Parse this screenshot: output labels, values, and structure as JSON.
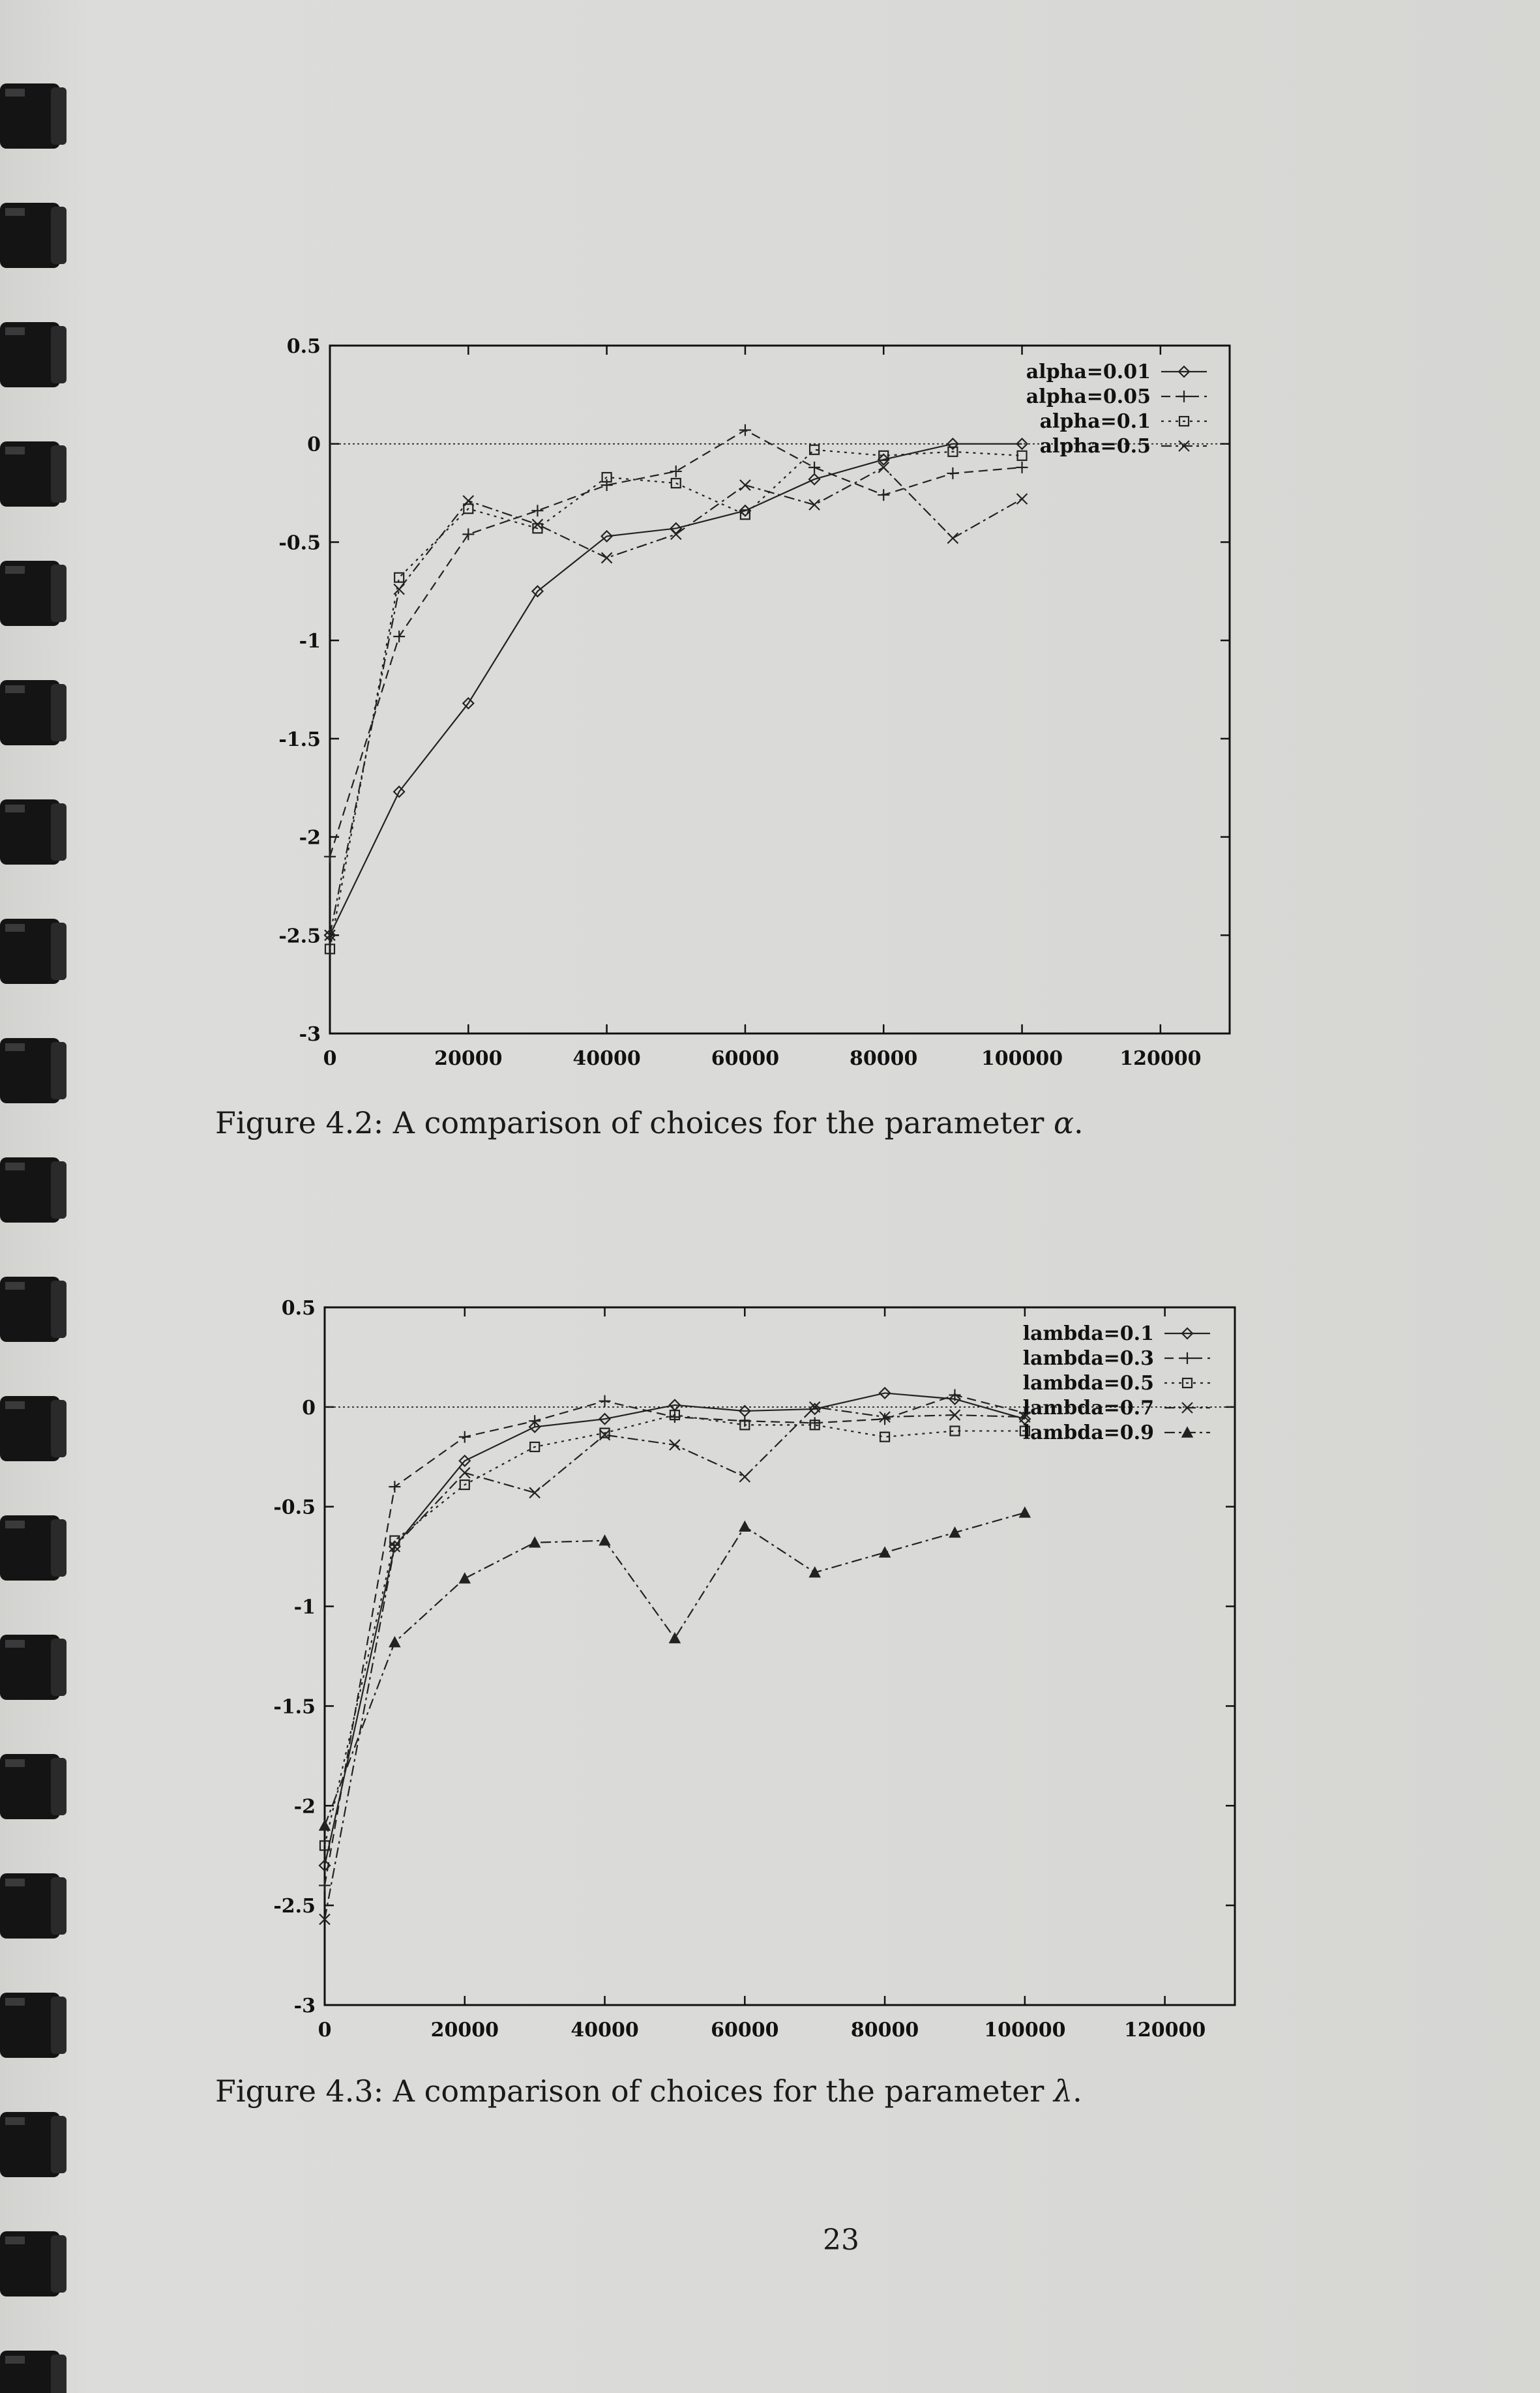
{
  "figures": [
    {
      "id": "fig42",
      "caption_main": "Figure 4.2: A comparison of choices for the parameter ",
      "caption_symbol": "α",
      "caption_end": ".",
      "chart_data": {
        "type": "line",
        "title": "",
        "xlabel": "",
        "ylabel": "",
        "xlim": [
          0,
          130000
        ],
        "ylim": [
          -3,
          0.5
        ],
        "xticks": [
          0,
          20000,
          40000,
          60000,
          80000,
          100000,
          120000
        ],
        "xtick_labels": [
          "0",
          "20000",
          "40000",
          "60000",
          "80000",
          "100000",
          "120000"
        ],
        "yticks": [
          0.5,
          0,
          -0.5,
          -1,
          -1.5,
          -2,
          -2.5,
          -3
        ],
        "ytick_labels": [
          "0.5",
          "0",
          "-0.5",
          "-1",
          "-1.5",
          "-2",
          "-2.5",
          "-3"
        ],
        "zero_line": true,
        "legend_position": "top-right",
        "x": [
          0,
          10000,
          20000,
          30000,
          40000,
          50000,
          60000,
          70000,
          80000,
          90000,
          100000
        ],
        "series": [
          {
            "name": "alpha=0.01",
            "marker": "diamond",
            "dash": "solid",
            "values": [
              -2.5,
              -1.77,
              -1.32,
              -0.75,
              -0.47,
              -0.43,
              -0.34,
              -0.18,
              -0.08,
              0.0,
              0.0
            ]
          },
          {
            "name": "alpha=0.05",
            "marker": "plus",
            "dash": "dashed",
            "values": [
              -2.1,
              -0.98,
              -0.46,
              -0.34,
              -0.21,
              -0.14,
              0.07,
              -0.12,
              -0.26,
              -0.15,
              -0.12
            ]
          },
          {
            "name": "alpha=0.1",
            "marker": "square",
            "dash": "dotted",
            "values": [
              -2.57,
              -0.68,
              -0.33,
              -0.43,
              -0.17,
              -0.2,
              -0.36,
              -0.03,
              -0.06,
              -0.04,
              -0.06
            ]
          },
          {
            "name": "alpha=0.5",
            "marker": "cross",
            "dash": "dashdot",
            "values": [
              -2.5,
              -0.74,
              -0.29,
              -0.41,
              -0.58,
              -0.46,
              -0.21,
              -0.31,
              -0.12,
              -0.48,
              -0.28
            ]
          }
        ]
      }
    },
    {
      "id": "fig43",
      "caption_main": "Figure 4.3: A comparison of choices for the parameter ",
      "caption_symbol": "λ",
      "caption_end": ".",
      "chart_data": {
        "type": "line",
        "title": "",
        "xlabel": "",
        "ylabel": "",
        "xlim": [
          0,
          130000
        ],
        "ylim": [
          -3,
          0.5
        ],
        "xticks": [
          0,
          20000,
          40000,
          60000,
          80000,
          100000,
          120000
        ],
        "xtick_labels": [
          "0",
          "20000",
          "40000",
          "60000",
          "80000",
          "100000",
          "120000"
        ],
        "yticks": [
          0.5,
          0,
          -0.5,
          -1,
          -1.5,
          -2,
          -2.5,
          -3
        ],
        "ytick_labels": [
          "0.5",
          "0",
          "-0.5",
          "-1",
          "-1.5",
          "-2",
          "-2.5",
          "-3"
        ],
        "zero_line": true,
        "legend_position": "top-right",
        "x": [
          0,
          10000,
          20000,
          30000,
          40000,
          50000,
          60000,
          70000,
          80000,
          90000,
          100000
        ],
        "series": [
          {
            "name": "lambda=0.1",
            "marker": "diamond",
            "dash": "solid",
            "values": [
              -2.3,
              -0.7,
              -0.27,
              -0.1,
              -0.06,
              0.01,
              -0.02,
              -0.01,
              0.07,
              0.04,
              -0.06
            ]
          },
          {
            "name": "lambda=0.3",
            "marker": "plus",
            "dash": "dashed",
            "values": [
              -2.4,
              -0.4,
              -0.15,
              -0.07,
              0.03,
              -0.05,
              -0.07,
              -0.08,
              -0.06,
              0.06,
              -0.03
            ]
          },
          {
            "name": "lambda=0.5",
            "marker": "square",
            "dash": "dotted",
            "values": [
              -2.2,
              -0.67,
              -0.39,
              -0.2,
              -0.13,
              -0.04,
              -0.09,
              -0.09,
              -0.15,
              -0.12,
              -0.12
            ]
          },
          {
            "name": "lambda=0.7",
            "marker": "cross",
            "dash": "dashdot",
            "values": [
              -2.57,
              -0.7,
              -0.33,
              -0.43,
              -0.14,
              -0.19,
              -0.35,
              0.0,
              -0.05,
              -0.04,
              -0.05
            ]
          },
          {
            "name": "lambda=0.9",
            "marker": "triangle",
            "dash": "dashdot",
            "values": [
              -2.1,
              -1.18,
              -0.86,
              -0.68,
              -0.67,
              -1.16,
              -0.6,
              -0.83,
              -0.73,
              -0.63,
              -0.53
            ]
          }
        ]
      }
    }
  ],
  "page_number": "23"
}
